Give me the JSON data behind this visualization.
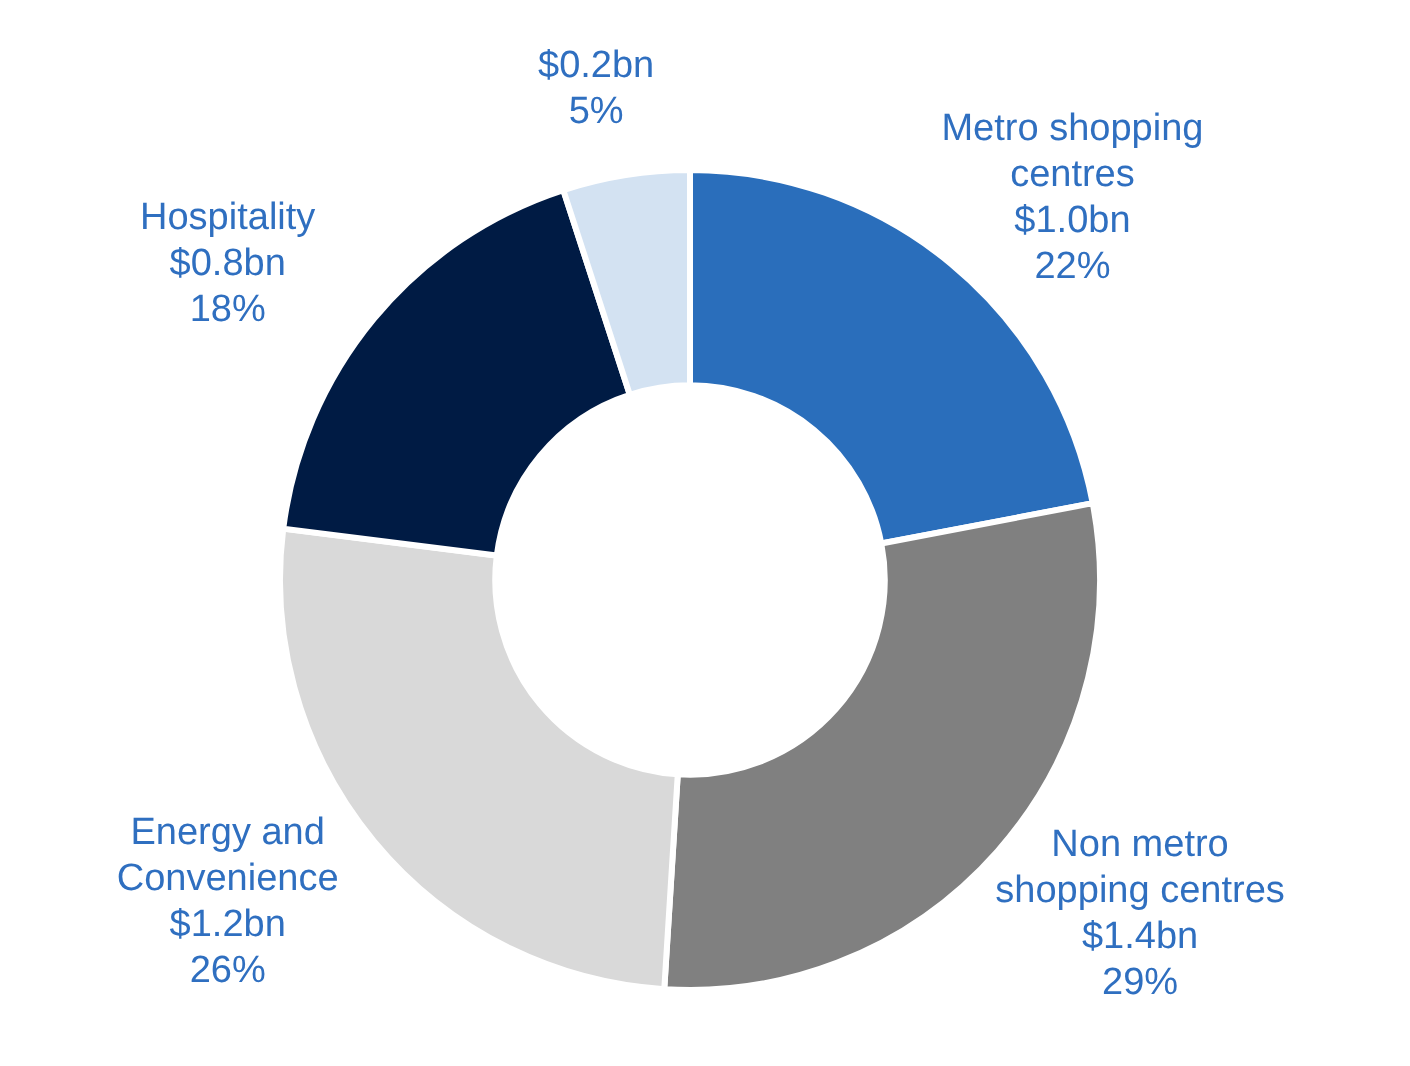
{
  "chart_data": {
    "type": "donut",
    "categories": [
      "Metro shopping centres",
      "Non metro shopping centres",
      "Energy and Convenience",
      "Hospitality",
      null
    ],
    "values": [
      22,
      29,
      26,
      18,
      5
    ],
    "colors": [
      "#2a6ebb",
      "#808080",
      "#d9d9d9",
      "#001b44",
      "#d3e2f2"
    ],
    "value_labels": [
      "$1.0bn\n22%",
      "$1.4bn\n29%",
      "$1.2bn\n26%",
      "$0.8bn\n18%",
      "$0.2bn\n5%"
    ],
    "legend": false
  }
}
